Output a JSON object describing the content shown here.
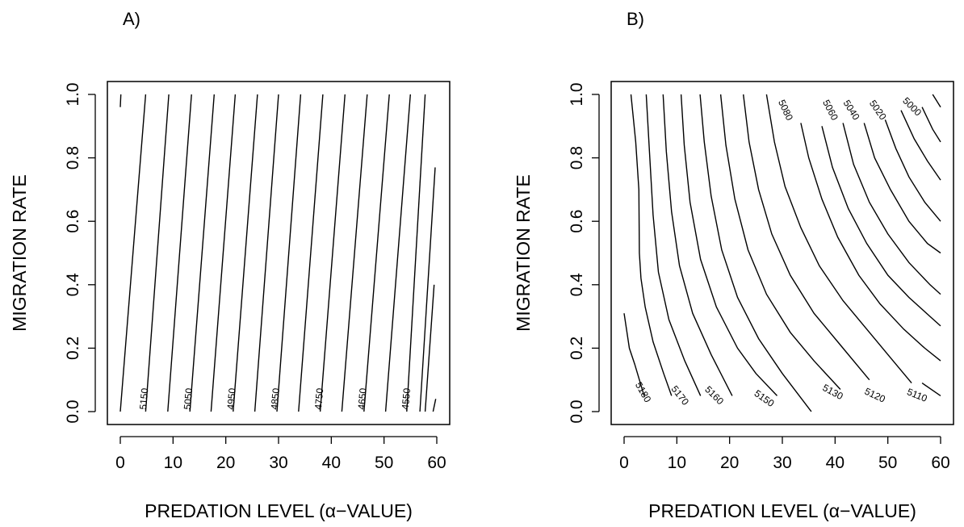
{
  "chart_data": [
    {
      "type": "contour",
      "panel_label": "A)",
      "xlabel": "PREDATION LEVEL (α−VALUE)",
      "ylabel": "MIGRATION RATE",
      "xlim": [
        0,
        60
      ],
      "ylim": [
        0,
        1
      ],
      "xticks": [
        "0",
        "10",
        "20",
        "30",
        "40",
        "50",
        "60"
      ],
      "yticks": [
        "0.0",
        "0.2",
        "0.4",
        "0.6",
        "0.8",
        "1.0"
      ],
      "grid": false,
      "contours": [
        {
          "label": "",
          "points": [
            [
              0,
              0.96
            ],
            [
              0.1,
              1.0
            ]
          ]
        },
        {
          "label": "5150",
          "points": [
            [
              0,
              0.0
            ],
            [
              4.8,
              1.0
            ]
          ]
        },
        {
          "label": "",
          "points": [
            [
              4.8,
              0.0
            ],
            [
              9.2,
              1.0
            ]
          ]
        },
        {
          "label": "5050",
          "points": [
            [
              9.0,
              0.0
            ],
            [
              13.5,
              1.0
            ]
          ]
        },
        {
          "label": "",
          "points": [
            [
              13.2,
              0.0
            ],
            [
              17.8,
              1.0
            ]
          ]
        },
        {
          "label": "4950",
          "points": [
            [
              17.2,
              0.0
            ],
            [
              21.8,
              1.0
            ]
          ]
        },
        {
          "label": "",
          "points": [
            [
              21.4,
              0.0
            ],
            [
              26.0,
              1.0
            ]
          ]
        },
        {
          "label": "4850",
          "points": [
            [
              25.5,
              0.0
            ],
            [
              30.0,
              1.0
            ]
          ]
        },
        {
          "label": "",
          "points": [
            [
              29.7,
              0.0
            ],
            [
              34.2,
              1.0
            ]
          ]
        },
        {
          "label": "4750",
          "points": [
            [
              33.8,
              0.0
            ],
            [
              38.4,
              1.0
            ]
          ]
        },
        {
          "label": "",
          "points": [
            [
              37.9,
              0.0
            ],
            [
              42.6,
              1.0
            ]
          ]
        },
        {
          "label": "4650",
          "points": [
            [
              42.0,
              0.0
            ],
            [
              46.8,
              1.0
            ]
          ]
        },
        {
          "label": "",
          "points": [
            [
              46.2,
              0.0
            ],
            [
              51.0,
              1.0
            ]
          ]
        },
        {
          "label": "4550",
          "points": [
            [
              50.3,
              0.0
            ],
            [
              55.0,
              1.0
            ]
          ]
        },
        {
          "label": "",
          "points": [
            [
              54.3,
              0.0
            ],
            [
              57.8,
              1.0
            ]
          ]
        },
        {
          "label": "",
          "points": [
            [
              56.8,
              0.0
            ],
            [
              59.7,
              0.77
            ]
          ]
        },
        {
          "label": "",
          "points": [
            [
              57.8,
              0.0
            ],
            [
              59.5,
              0.4
            ]
          ]
        },
        {
          "label": "",
          "points": [
            [
              59.3,
              0.0
            ],
            [
              59.8,
              0.04
            ]
          ]
        }
      ],
      "contour_labels": [
        {
          "text": "5150",
          "x": 4.6,
          "y": 0.04
        },
        {
          "text": "5050",
          "x": 13.0,
          "y": 0.04
        },
        {
          "text": "4950",
          "x": 21.2,
          "y": 0.04
        },
        {
          "text": "4850",
          "x": 29.5,
          "y": 0.04
        },
        {
          "text": "4750",
          "x": 37.8,
          "y": 0.04
        },
        {
          "text": "4650",
          "x": 46.0,
          "y": 0.04
        },
        {
          "text": "4550",
          "x": 54.3,
          "y": 0.04
        }
      ]
    },
    {
      "type": "contour",
      "panel_label": "B)",
      "xlabel": "PREDATION LEVEL (α−VALUE)",
      "ylabel": "MIGRATION RATE",
      "xlim": [
        0,
        60
      ],
      "ylim": [
        0,
        1
      ],
      "xticks": [
        "0",
        "10",
        "20",
        "30",
        "40",
        "50",
        "60"
      ],
      "yticks": [
        "0.0",
        "0.2",
        "0.4",
        "0.6",
        "0.8",
        "1.0"
      ],
      "grid": false,
      "contours": [
        {
          "label": "5180",
          "points": [
            [
              0,
              0.31
            ],
            [
              1,
              0.2
            ],
            [
              2,
              0.15
            ],
            [
              3.8,
              0.05
            ]
          ]
        },
        {
          "label": "",
          "points": [
            [
              1.3,
              1.0
            ],
            [
              2.2,
              0.85
            ],
            [
              2.8,
              0.7
            ],
            [
              2.9,
              0.5
            ],
            [
              3.2,
              0.42
            ]
          ]
        },
        {
          "label": "5170",
          "points": [
            [
              3.2,
              0.42
            ],
            [
              4.0,
              0.33
            ],
            [
              5.5,
              0.22
            ],
            [
              7.5,
              0.12
            ],
            [
              9.0,
              0.05
            ]
          ]
        },
        {
          "label": "",
          "points": [
            [
              4.2,
              1.0
            ],
            [
              4.8,
              0.82
            ],
            [
              5.5,
              0.62
            ],
            [
              6.5,
              0.44
            ],
            [
              8.5,
              0.29
            ],
            [
              11.5,
              0.16
            ],
            [
              14.5,
              0.05
            ]
          ]
        },
        {
          "label": "5160",
          "points": [
            [
              7.4,
              1.0
            ],
            [
              8.0,
              0.82
            ],
            [
              9.0,
              0.63
            ],
            [
              10.5,
              0.46
            ],
            [
              13.0,
              0.31
            ],
            [
              16.5,
              0.18
            ],
            [
              20.5,
              0.05
            ]
          ]
        },
        {
          "label": "5150",
          "points": [
            [
              10.8,
              1.0
            ],
            [
              11.4,
              0.84
            ],
            [
              12.5,
              0.66
            ],
            [
              14.5,
              0.48
            ],
            [
              17.5,
              0.33
            ],
            [
              21.5,
              0.2
            ],
            [
              25.0,
              0.12
            ],
            [
              29.0,
              0.05
            ]
          ]
        },
        {
          "label": "",
          "points": [
            [
              14.4,
              1.0
            ],
            [
              15.2,
              0.85
            ],
            [
              16.5,
              0.68
            ],
            [
              18.5,
              0.51
            ],
            [
              21.5,
              0.36
            ],
            [
              25.5,
              0.23
            ],
            [
              30.0,
              0.12
            ],
            [
              35.5,
              0.0
            ]
          ]
        },
        {
          "label": "5130",
          "points": [
            [
              18.3,
              1.0
            ],
            [
              19.3,
              0.84
            ],
            [
              21.0,
              0.67
            ],
            [
              23.5,
              0.51
            ],
            [
              27.0,
              0.37
            ],
            [
              31.5,
              0.25
            ],
            [
              36.0,
              0.16
            ],
            [
              41.0,
              0.07
            ]
          ]
        },
        {
          "label": "5120",
          "points": [
            [
              22.6,
              1.0
            ],
            [
              23.7,
              0.85
            ],
            [
              25.5,
              0.7
            ],
            [
              28.0,
              0.56
            ],
            [
              31.5,
              0.43
            ],
            [
              36.0,
              0.31
            ],
            [
              41.0,
              0.21
            ],
            [
              46.5,
              0.1
            ]
          ]
        },
        {
          "label": "5110",
          "points": [
            [
              27.0,
              1.0
            ],
            [
              28.5,
              0.85
            ],
            [
              30.5,
              0.71
            ],
            [
              33.5,
              0.58
            ],
            [
              37.0,
              0.46
            ],
            [
              41.5,
              0.35
            ],
            [
              46.0,
              0.26
            ],
            [
              50.5,
              0.17
            ],
            [
              54.5,
              0.09
            ]
          ]
        },
        {
          "label": "",
          "points": [
            [
              56.5,
              0.09
            ],
            [
              60,
              0.05
            ]
          ]
        },
        {
          "label": "",
          "points": [
            [
              33.5,
              0.91
            ],
            [
              35.0,
              0.8
            ],
            [
              37.5,
              0.67
            ],
            [
              40.5,
              0.55
            ],
            [
              44.5,
              0.43
            ],
            [
              48.5,
              0.34
            ],
            [
              53.0,
              0.26
            ],
            [
              57.0,
              0.2
            ],
            [
              60,
              0.16
            ]
          ]
        },
        {
          "label": "5080",
          "points": [
            [
              37.5,
              0.9
            ],
            [
              39.5,
              0.77
            ],
            [
              42.5,
              0.64
            ],
            [
              46.0,
              0.53
            ],
            [
              50.0,
              0.43
            ],
            [
              54.0,
              0.36
            ],
            [
              58.0,
              0.3
            ],
            [
              60,
              0.27
            ]
          ]
        },
        {
          "label": "5060",
          "points": [
            [
              41.5,
              0.91
            ],
            [
              43.5,
              0.78
            ],
            [
              46.5,
              0.66
            ],
            [
              50.0,
              0.56
            ],
            [
              54.0,
              0.47
            ],
            [
              58.0,
              0.4
            ],
            [
              60,
              0.37
            ]
          ]
        },
        {
          "label": "5040",
          "points": [
            [
              45.5,
              0.91
            ],
            [
              47.5,
              0.8
            ],
            [
              50.5,
              0.7
            ],
            [
              54.0,
              0.6
            ],
            [
              57.5,
              0.53
            ],
            [
              60,
              0.5
            ]
          ]
        },
        {
          "label": "5020",
          "points": [
            [
              49.5,
              0.92
            ],
            [
              51.5,
              0.83
            ],
            [
              54.0,
              0.74
            ],
            [
              57.0,
              0.66
            ],
            [
              60,
              0.6
            ]
          ]
        },
        {
          "label": "",
          "points": [
            [
              52.5,
              0.95
            ],
            [
              55.0,
              0.86
            ],
            [
              57.5,
              0.79
            ],
            [
              60,
              0.73
            ]
          ]
        },
        {
          "label": "5000",
          "points": [
            [
              56.5,
              0.96
            ],
            [
              58.5,
              0.89
            ],
            [
              60,
              0.85
            ]
          ]
        },
        {
          "label": "",
          "points": [
            [
              58.5,
              1.0
            ],
            [
              60,
              0.96
            ]
          ]
        }
      ],
      "contour_labels": [
        {
          "text": "5180",
          "x": 3.5,
          "y": 0.06,
          "angle": 60
        },
        {
          "text": "5170",
          "x": 10.5,
          "y": 0.05,
          "angle": 52
        },
        {
          "text": "5160",
          "x": 17.0,
          "y": 0.05,
          "angle": 45
        },
        {
          "text": "5150",
          "x": 26.5,
          "y": 0.04,
          "angle": 35
        },
        {
          "text": "5130",
          "x": 39.5,
          "y": 0.06,
          "angle": 28
        },
        {
          "text": "5120",
          "x": 47.5,
          "y": 0.05,
          "angle": 25
        },
        {
          "text": "5110",
          "x": 55.5,
          "y": 0.05,
          "angle": 22
        },
        {
          "text": "5080",
          "x": 30.5,
          "y": 0.95,
          "angle": 65
        },
        {
          "text": "5060",
          "x": 39.0,
          "y": 0.95,
          "angle": 62
        },
        {
          "text": "5040",
          "x": 43.0,
          "y": 0.95,
          "angle": 58
        },
        {
          "text": "5020",
          "x": 48.0,
          "y": 0.95,
          "angle": 55
        },
        {
          "text": "5000",
          "x": 54.5,
          "y": 0.96,
          "angle": 45
        }
      ]
    }
  ]
}
